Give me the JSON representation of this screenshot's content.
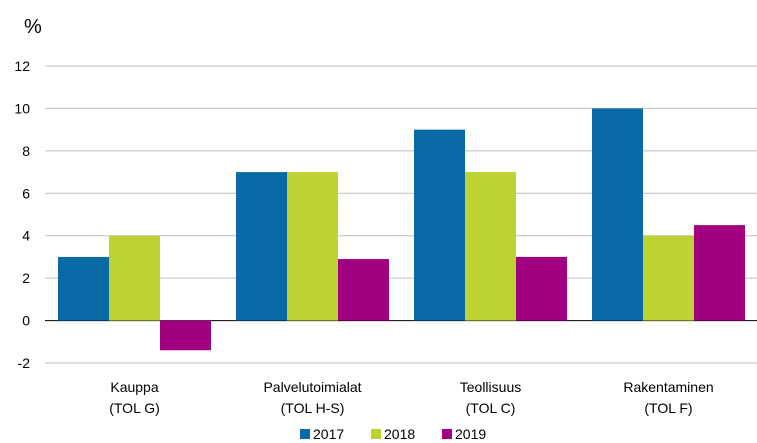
{
  "chart_data": {
    "type": "bar",
    "ylabel": "%",
    "ylim": [
      -2,
      12
    ],
    "yticks": [
      -2,
      0,
      2,
      4,
      6,
      8,
      10,
      12
    ],
    "grid": true,
    "legend_position": "bottom",
    "categories": [
      [
        "Kauppa",
        "(TOL G)"
      ],
      [
        "Palvelutoimialat",
        "(TOL H-S)"
      ],
      [
        "Teollisuus",
        "(TOL C)"
      ],
      [
        "Rakentaminen",
        "(TOL F)"
      ]
    ],
    "series": [
      {
        "name": "2017",
        "color": "#0a6aa6",
        "values": [
          3,
          7,
          9,
          10
        ]
      },
      {
        "name": "2018",
        "color": "#bed331",
        "values": [
          4,
          7,
          7,
          4
        ]
      },
      {
        "name": "2019",
        "color": "#a10080",
        "values": [
          -1.4,
          2.9,
          3,
          4.5
        ]
      }
    ]
  }
}
